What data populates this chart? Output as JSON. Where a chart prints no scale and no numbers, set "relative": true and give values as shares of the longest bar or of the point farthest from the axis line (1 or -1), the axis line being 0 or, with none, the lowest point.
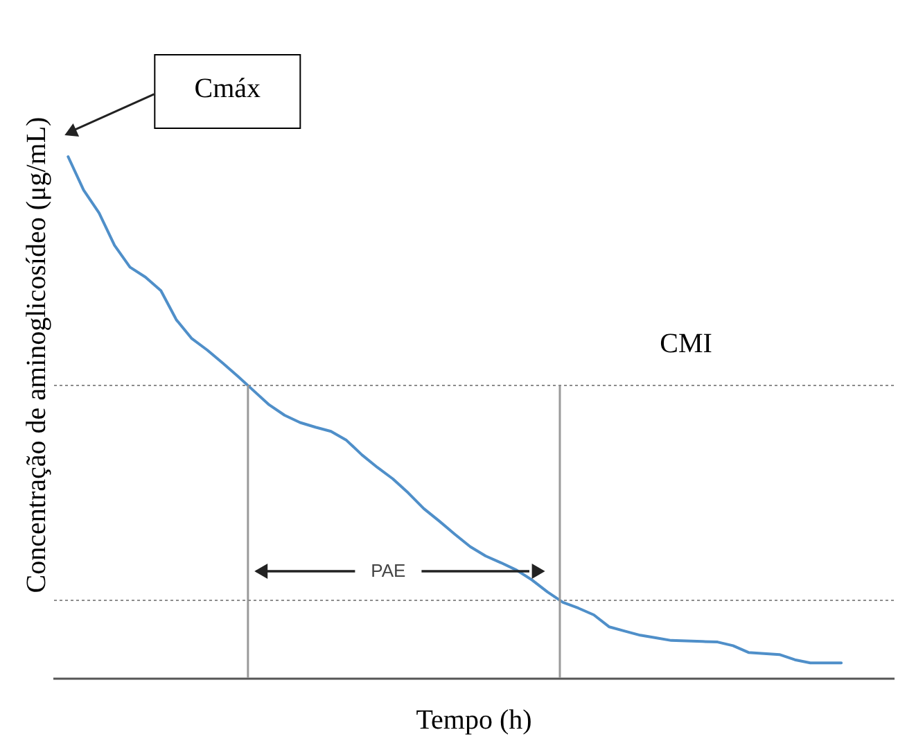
{
  "chart_data": {
    "type": "line",
    "relative": true,
    "xlabel": "Tempo (h)",
    "ylabel": "Concentração de aminoglicosídeo (μg/mL)",
    "categories": [
      null,
      null,
      null,
      null,
      null,
      null,
      null,
      null,
      null,
      null,
      null,
      null,
      null,
      null,
      null,
      null,
      null,
      null,
      null,
      null,
      null,
      null,
      null,
      null,
      null,
      null,
      null,
      null,
      null,
      null,
      null,
      null,
      null,
      null,
      null,
      null,
      null,
      null,
      null,
      null,
      null,
      null,
      null,
      null,
      null,
      null,
      null,
      null,
      null,
      null,
      null
    ],
    "series": [
      {
        "color": "#4f8fc9",
        "values": [
          1.0,
          0.936,
          0.892,
          0.83,
          0.788,
          0.769,
          0.743,
          0.687,
          0.651,
          0.629,
          0.604,
          0.578,
          0.551,
          0.524,
          0.504,
          0.49,
          0.481,
          0.473,
          0.456,
          0.428,
          0.404,
          0.382,
          0.355,
          0.325,
          0.301,
          0.276,
          0.252,
          0.234,
          0.221,
          0.207,
          0.188,
          0.165,
          0.145,
          0.134,
          0.121,
          0.098,
          0.09,
          0.082,
          0.077,
          0.072,
          0.071,
          0.07,
          0.069,
          0.062,
          0.049,
          0.047,
          0.045,
          0.035,
          0.029,
          0.029,
          0.029
        ]
      }
    ],
    "ref_lines": [
      {
        "axis": "y",
        "value": 0.561,
        "label": "CMI",
        "color": "#8c8c8c",
        "line_style": "dotted"
      },
      {
        "axis": "y",
        "value": 0.149,
        "color": "#8c8c8c",
        "line_style": "dotted"
      }
    ],
    "annotations": [
      "Cmáx",
      "PAE"
    ]
  }
}
